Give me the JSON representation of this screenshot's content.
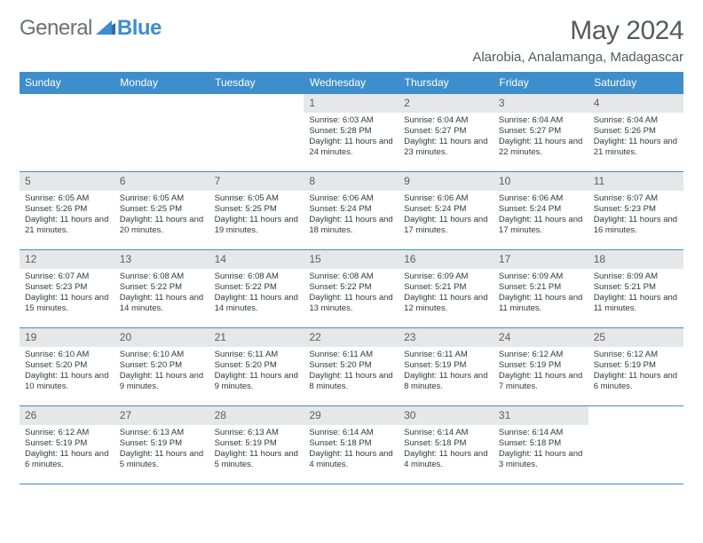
{
  "brand": {
    "part1": "General",
    "part2": "Blue"
  },
  "title": "May 2024",
  "location": "Alarobia, Analamanga, Madagascar",
  "colors": {
    "header_bg": "#3d8ecb",
    "header_text": "#ffffff",
    "daynum_bg": "#e6e7e8",
    "text": "#33383c",
    "title_text": "#555b60",
    "rule": "#3d8ecb"
  },
  "weekdays": [
    "Sunday",
    "Monday",
    "Tuesday",
    "Wednesday",
    "Thursday",
    "Friday",
    "Saturday"
  ],
  "weeks": [
    [
      null,
      null,
      null,
      {
        "n": "1",
        "sr": "Sunrise: 6:03 AM",
        "ss": "Sunset: 5:28 PM",
        "dl": "Daylight: 11 hours and 24 minutes."
      },
      {
        "n": "2",
        "sr": "Sunrise: 6:04 AM",
        "ss": "Sunset: 5:27 PM",
        "dl": "Daylight: 11 hours and 23 minutes."
      },
      {
        "n": "3",
        "sr": "Sunrise: 6:04 AM",
        "ss": "Sunset: 5:27 PM",
        "dl": "Daylight: 11 hours and 22 minutes."
      },
      {
        "n": "4",
        "sr": "Sunrise: 6:04 AM",
        "ss": "Sunset: 5:26 PM",
        "dl": "Daylight: 11 hours and 21 minutes."
      }
    ],
    [
      {
        "n": "5",
        "sr": "Sunrise: 6:05 AM",
        "ss": "Sunset: 5:26 PM",
        "dl": "Daylight: 11 hours and 21 minutes."
      },
      {
        "n": "6",
        "sr": "Sunrise: 6:05 AM",
        "ss": "Sunset: 5:25 PM",
        "dl": "Daylight: 11 hours and 20 minutes."
      },
      {
        "n": "7",
        "sr": "Sunrise: 6:05 AM",
        "ss": "Sunset: 5:25 PM",
        "dl": "Daylight: 11 hours and 19 minutes."
      },
      {
        "n": "8",
        "sr": "Sunrise: 6:06 AM",
        "ss": "Sunset: 5:24 PM",
        "dl": "Daylight: 11 hours and 18 minutes."
      },
      {
        "n": "9",
        "sr": "Sunrise: 6:06 AM",
        "ss": "Sunset: 5:24 PM",
        "dl": "Daylight: 11 hours and 17 minutes."
      },
      {
        "n": "10",
        "sr": "Sunrise: 6:06 AM",
        "ss": "Sunset: 5:24 PM",
        "dl": "Daylight: 11 hours and 17 minutes."
      },
      {
        "n": "11",
        "sr": "Sunrise: 6:07 AM",
        "ss": "Sunset: 5:23 PM",
        "dl": "Daylight: 11 hours and 16 minutes."
      }
    ],
    [
      {
        "n": "12",
        "sr": "Sunrise: 6:07 AM",
        "ss": "Sunset: 5:23 PM",
        "dl": "Daylight: 11 hours and 15 minutes."
      },
      {
        "n": "13",
        "sr": "Sunrise: 6:08 AM",
        "ss": "Sunset: 5:22 PM",
        "dl": "Daylight: 11 hours and 14 minutes."
      },
      {
        "n": "14",
        "sr": "Sunrise: 6:08 AM",
        "ss": "Sunset: 5:22 PM",
        "dl": "Daylight: 11 hours and 14 minutes."
      },
      {
        "n": "15",
        "sr": "Sunrise: 6:08 AM",
        "ss": "Sunset: 5:22 PM",
        "dl": "Daylight: 11 hours and 13 minutes."
      },
      {
        "n": "16",
        "sr": "Sunrise: 6:09 AM",
        "ss": "Sunset: 5:21 PM",
        "dl": "Daylight: 11 hours and 12 minutes."
      },
      {
        "n": "17",
        "sr": "Sunrise: 6:09 AM",
        "ss": "Sunset: 5:21 PM",
        "dl": "Daylight: 11 hours and 11 minutes."
      },
      {
        "n": "18",
        "sr": "Sunrise: 6:09 AM",
        "ss": "Sunset: 5:21 PM",
        "dl": "Daylight: 11 hours and 11 minutes."
      }
    ],
    [
      {
        "n": "19",
        "sr": "Sunrise: 6:10 AM",
        "ss": "Sunset: 5:20 PM",
        "dl": "Daylight: 11 hours and 10 minutes."
      },
      {
        "n": "20",
        "sr": "Sunrise: 6:10 AM",
        "ss": "Sunset: 5:20 PM",
        "dl": "Daylight: 11 hours and 9 minutes."
      },
      {
        "n": "21",
        "sr": "Sunrise: 6:11 AM",
        "ss": "Sunset: 5:20 PM",
        "dl": "Daylight: 11 hours and 9 minutes."
      },
      {
        "n": "22",
        "sr": "Sunrise: 6:11 AM",
        "ss": "Sunset: 5:20 PM",
        "dl": "Daylight: 11 hours and 8 minutes."
      },
      {
        "n": "23",
        "sr": "Sunrise: 6:11 AM",
        "ss": "Sunset: 5:19 PM",
        "dl": "Daylight: 11 hours and 8 minutes."
      },
      {
        "n": "24",
        "sr": "Sunrise: 6:12 AM",
        "ss": "Sunset: 5:19 PM",
        "dl": "Daylight: 11 hours and 7 minutes."
      },
      {
        "n": "25",
        "sr": "Sunrise: 6:12 AM",
        "ss": "Sunset: 5:19 PM",
        "dl": "Daylight: 11 hours and 6 minutes."
      }
    ],
    [
      {
        "n": "26",
        "sr": "Sunrise: 6:12 AM",
        "ss": "Sunset: 5:19 PM",
        "dl": "Daylight: 11 hours and 6 minutes."
      },
      {
        "n": "27",
        "sr": "Sunrise: 6:13 AM",
        "ss": "Sunset: 5:19 PM",
        "dl": "Daylight: 11 hours and 5 minutes."
      },
      {
        "n": "28",
        "sr": "Sunrise: 6:13 AM",
        "ss": "Sunset: 5:19 PM",
        "dl": "Daylight: 11 hours and 5 minutes."
      },
      {
        "n": "29",
        "sr": "Sunrise: 6:14 AM",
        "ss": "Sunset: 5:18 PM",
        "dl": "Daylight: 11 hours and 4 minutes."
      },
      {
        "n": "30",
        "sr": "Sunrise: 6:14 AM",
        "ss": "Sunset: 5:18 PM",
        "dl": "Daylight: 11 hours and 4 minutes."
      },
      {
        "n": "31",
        "sr": "Sunrise: 6:14 AM",
        "ss": "Sunset: 5:18 PM",
        "dl": "Daylight: 11 hours and 3 minutes."
      },
      null
    ]
  ]
}
